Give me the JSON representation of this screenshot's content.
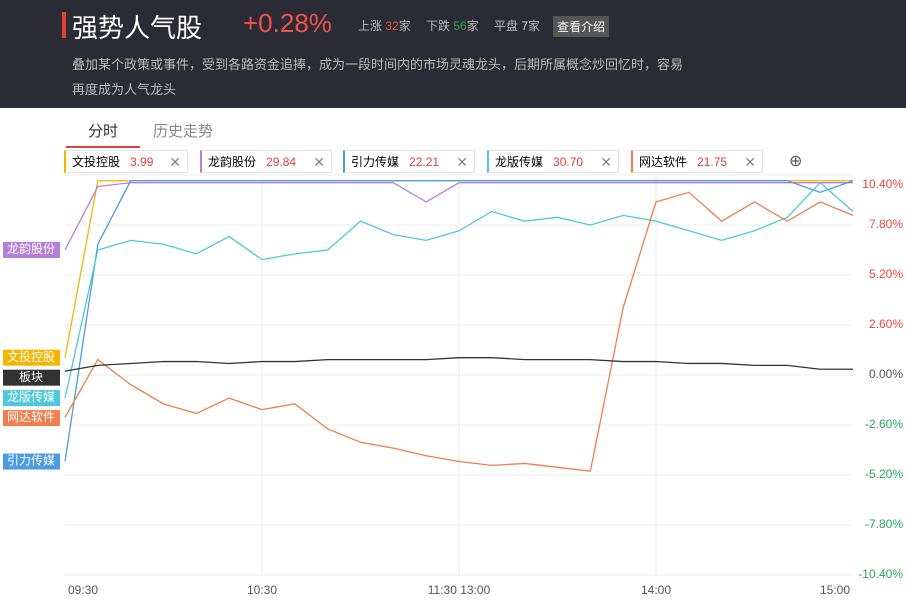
{
  "header": {
    "title": "强势人气股",
    "change": "+0.28%",
    "up": {
      "label": "上涨",
      "count": 32,
      "unit": "家"
    },
    "down": {
      "label": "下跌",
      "count": 56,
      "unit": "家"
    },
    "flat": {
      "label": "平盘",
      "count": 7,
      "unit": "家"
    },
    "button": "查看介绍",
    "description": "叠加某个政策或事件，受到各路资金追捧，成为一段时间内的市场灵魂龙头，后期所属概念炒回忆时，容易再度成为人气龙头"
  },
  "tabs": [
    "分时",
    "历史走势"
  ],
  "chart_data": {
    "type": "line",
    "categories": [
      "09:30",
      null,
      null,
      null,
      null,
      null,
      "10:30",
      null,
      null,
      null,
      null,
      null,
      "11:30 13:00",
      null,
      null,
      null,
      null,
      null,
      "14:00",
      null,
      null,
      null,
      null,
      null,
      "15:00"
    ],
    "ylim": [
      -10.4,
      10.4
    ],
    "yticks": [
      {
        "value": 10.4,
        "label": "10.40%"
      },
      {
        "value": 7.8,
        "label": "7.80%"
      },
      {
        "value": 5.2,
        "label": "5.20%"
      },
      {
        "value": 2.6,
        "label": "2.60%"
      },
      {
        "value": 0,
        "label": "0.00%"
      },
      {
        "value": -2.6,
        "label": "-2.60%"
      },
      {
        "value": -5.2,
        "label": "-5.20%"
      },
      {
        "value": -7.8,
        "label": "-7.80%"
      },
      {
        "value": -10.4,
        "label": "-10.40%"
      }
    ],
    "grid": true,
    "series": [
      {
        "name": "文投控股",
        "price": "3.99",
        "color": "#f5b400",
        "values": [
          0.9,
          10.1,
          10.1,
          10.1,
          10.1,
          10.1,
          10.1,
          10.1,
          10.1,
          10.1,
          10.1,
          10.1,
          10.1,
          10.1,
          10.1,
          10.1,
          10.1,
          10.1,
          10.1,
          10.1,
          10.1,
          10.1,
          10.1,
          10.1,
          10.1
        ]
      },
      {
        "name": "龙韵股份",
        "price": "29.84",
        "color": "#b77fd8",
        "values": [
          6.5,
          9.8,
          10.0,
          10.0,
          10.0,
          10.0,
          10.0,
          10.0,
          10.0,
          10.0,
          10.0,
          9.0,
          10.0,
          10.0,
          10.0,
          10.0,
          10.0,
          10.0,
          10.0,
          10.0,
          10.0,
          10.0,
          10.0,
          10.0,
          10.0
        ]
      },
      {
        "name": "引力传媒",
        "price": "22.21",
        "color": "#4a9be0",
        "values": [
          -4.5,
          6.8,
          10.1,
          10.1,
          10.1,
          10.1,
          10.1,
          10.1,
          10.1,
          10.1,
          10.1,
          10.1,
          10.1,
          10.1,
          10.1,
          10.1,
          10.1,
          10.1,
          10.1,
          10.1,
          10.1,
          10.1,
          10.1,
          9.5,
          10.1
        ]
      },
      {
        "name": "龙版传媒",
        "price": "30.70",
        "color": "#4ec7dc",
        "values": [
          -1.2,
          6.5,
          7.0,
          6.8,
          6.3,
          7.2,
          6.0,
          6.3,
          6.5,
          8.0,
          7.3,
          7.0,
          7.5,
          8.5,
          8.0,
          8.2,
          7.8,
          8.3,
          8.0,
          7.5,
          7.0,
          7.5,
          8.2,
          10.0,
          8.5
        ]
      },
      {
        "name": "网达软件",
        "price": "21.75",
        "color": "#f07d4c",
        "values": [
          -2.2,
          0.8,
          -0.5,
          -1.5,
          -2.0,
          -1.2,
          -1.8,
          -1.5,
          -2.8,
          -3.5,
          -3.8,
          -4.2,
          -4.5,
          -4.7,
          -4.6,
          -4.8,
          -5.0,
          3.5,
          9.0,
          9.5,
          8.0,
          9.0,
          8.0,
          9.0,
          8.3
        ]
      },
      {
        "name": "板块",
        "color": "#333333",
        "values": [
          0.2,
          0.5,
          0.6,
          0.7,
          0.7,
          0.6,
          0.7,
          0.7,
          0.8,
          0.8,
          0.8,
          0.8,
          0.9,
          0.9,
          0.8,
          0.8,
          0.8,
          0.7,
          0.7,
          0.6,
          0.6,
          0.5,
          0.5,
          0.3,
          0.3
        ]
      }
    ]
  }
}
